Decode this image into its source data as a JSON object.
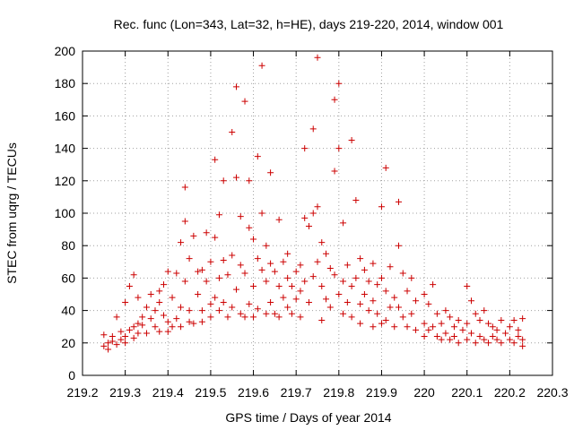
{
  "chart_data": {
    "type": "scatter",
    "title": "Rec. func (Lon=343, Lat=32, h=HE), days 219-220, 2014, window 001",
    "xlabel": "GPS time / Days of year 2014",
    "ylabel": "STEC from uqrg / TECUs",
    "xlim": [
      219.2,
      220.3
    ],
    "ylim": [
      0,
      200
    ],
    "x_ticks": [
      "219.2",
      "219.3",
      "219.4",
      "219.5",
      "219.6",
      "219.7",
      "219.8",
      "219.9",
      "220",
      "220.1",
      "220.2",
      "220.3"
    ],
    "y_ticks": [
      "0",
      "20",
      "40",
      "60",
      "80",
      "100",
      "120",
      "140",
      "160",
      "180",
      "200"
    ],
    "grid": true,
    "marker": "plus",
    "colors": {
      "points": "#cc0000",
      "grid": "#a0a0a0",
      "axis": "#000000"
    },
    "series": [
      {
        "points": [
          [
            219.25,
            25
          ],
          [
            219.25,
            18
          ],
          [
            219.26,
            20
          ],
          [
            219.26,
            16
          ],
          [
            219.27,
            24
          ],
          [
            219.27,
            21
          ],
          [
            219.28,
            19
          ],
          [
            219.28,
            36
          ],
          [
            219.29,
            27
          ],
          [
            219.29,
            22
          ],
          [
            219.3,
            45
          ],
          [
            219.3,
            24
          ],
          [
            219.3,
            20
          ],
          [
            219.31,
            55
          ],
          [
            219.31,
            28
          ],
          [
            219.32,
            30
          ],
          [
            219.32,
            23
          ],
          [
            219.32,
            62
          ],
          [
            219.33,
            48
          ],
          [
            219.33,
            32
          ],
          [
            219.33,
            26
          ],
          [
            219.34,
            36
          ],
          [
            219.34,
            31
          ],
          [
            219.35,
            42
          ],
          [
            219.35,
            26
          ],
          [
            219.36,
            35
          ],
          [
            219.36,
            50
          ],
          [
            219.37,
            40
          ],
          [
            219.37,
            30
          ],
          [
            219.38,
            52
          ],
          [
            219.38,
            27
          ],
          [
            219.38,
            45
          ],
          [
            219.39,
            56
          ],
          [
            219.39,
            37
          ],
          [
            219.4,
            33
          ],
          [
            219.4,
            64
          ],
          [
            219.4,
            27
          ],
          [
            219.41,
            48
          ],
          [
            219.41,
            30
          ],
          [
            219.42,
            63
          ],
          [
            219.42,
            35
          ],
          [
            219.43,
            82
          ],
          [
            219.43,
            42
          ],
          [
            219.43,
            30
          ],
          [
            219.44,
            116
          ],
          [
            219.44,
            95
          ],
          [
            219.44,
            58
          ],
          [
            219.45,
            72
          ],
          [
            219.45,
            40
          ],
          [
            219.45,
            33
          ],
          [
            219.46,
            86
          ],
          [
            219.46,
            32
          ],
          [
            219.47,
            64
          ],
          [
            219.47,
            50
          ],
          [
            219.48,
            65
          ],
          [
            219.48,
            40
          ],
          [
            219.48,
            33
          ],
          [
            219.49,
            88
          ],
          [
            219.49,
            58
          ],
          [
            219.5,
            70
          ],
          [
            219.5,
            44
          ],
          [
            219.5,
            36
          ],
          [
            219.51,
            133
          ],
          [
            219.51,
            85
          ],
          [
            219.51,
            48
          ],
          [
            219.52,
            99
          ],
          [
            219.52,
            60
          ],
          [
            219.52,
            40
          ],
          [
            219.53,
            120
          ],
          [
            219.53,
            71
          ],
          [
            219.53,
            45
          ],
          [
            219.54,
            62
          ],
          [
            219.54,
            36
          ],
          [
            219.55,
            150
          ],
          [
            219.55,
            74
          ],
          [
            219.55,
            42
          ],
          [
            219.56,
            178
          ],
          [
            219.56,
            122
          ],
          [
            219.56,
            53
          ],
          [
            219.57,
            98
          ],
          [
            219.57,
            68
          ],
          [
            219.57,
            38
          ],
          [
            219.58,
            169
          ],
          [
            219.58,
            63
          ],
          [
            219.58,
            36
          ],
          [
            219.59,
            120
          ],
          [
            219.59,
            91
          ],
          [
            219.59,
            44
          ],
          [
            219.6,
            84
          ],
          [
            219.6,
            55
          ],
          [
            219.6,
            36
          ],
          [
            219.61,
            135
          ],
          [
            219.61,
            72
          ],
          [
            219.61,
            41
          ],
          [
            219.62,
            191
          ],
          [
            219.62,
            100
          ],
          [
            219.62,
            65
          ],
          [
            219.63,
            80
          ],
          [
            219.63,
            58
          ],
          [
            219.63,
            38
          ],
          [
            219.64,
            125
          ],
          [
            219.64,
            69
          ],
          [
            219.64,
            45
          ],
          [
            219.65,
            64
          ],
          [
            219.65,
            38
          ],
          [
            219.66,
            96
          ],
          [
            219.66,
            55
          ],
          [
            219.66,
            36
          ],
          [
            219.67,
            70
          ],
          [
            219.67,
            48
          ],
          [
            219.68,
            75
          ],
          [
            219.68,
            60
          ],
          [
            219.68,
            42
          ],
          [
            219.69,
            55
          ],
          [
            219.69,
            38
          ],
          [
            219.7,
            64
          ],
          [
            219.7,
            47
          ],
          [
            219.71,
            68
          ],
          [
            219.71,
            52
          ],
          [
            219.71,
            36
          ],
          [
            219.72,
            140
          ],
          [
            219.72,
            97
          ],
          [
            219.72,
            58
          ],
          [
            219.73,
            92
          ],
          [
            219.73,
            45
          ],
          [
            219.74,
            152
          ],
          [
            219.74,
            100
          ],
          [
            219.74,
            61
          ],
          [
            219.75,
            196
          ],
          [
            219.75,
            104
          ],
          [
            219.75,
            70
          ],
          [
            219.76,
            82
          ],
          [
            219.76,
            55
          ],
          [
            219.76,
            34
          ],
          [
            219.77,
            75
          ],
          [
            219.77,
            47
          ],
          [
            219.78,
            66
          ],
          [
            219.78,
            42
          ],
          [
            219.79,
            126
          ],
          [
            219.79,
            170
          ],
          [
            219.79,
            62
          ],
          [
            219.8,
            180
          ],
          [
            219.8,
            140
          ],
          [
            219.8,
            50
          ],
          [
            219.81,
            94
          ],
          [
            219.81,
            58
          ],
          [
            219.81,
            38
          ],
          [
            219.82,
            68
          ],
          [
            219.82,
            45
          ],
          [
            219.83,
            145
          ],
          [
            219.83,
            55
          ],
          [
            219.83,
            36
          ],
          [
            219.84,
            108
          ],
          [
            219.84,
            60
          ],
          [
            219.85,
            72
          ],
          [
            219.85,
            44
          ],
          [
            219.85,
            32
          ],
          [
            219.86,
            65
          ],
          [
            219.86,
            50
          ],
          [
            219.87,
            58
          ],
          [
            219.87,
            40
          ],
          [
            219.88,
            69
          ],
          [
            219.88,
            46
          ],
          [
            219.88,
            30
          ],
          [
            219.89,
            56
          ],
          [
            219.89,
            38
          ],
          [
            219.9,
            104
          ],
          [
            219.9,
            60
          ],
          [
            219.9,
            32
          ],
          [
            219.91,
            128
          ],
          [
            219.91,
            52
          ],
          [
            219.91,
            34
          ],
          [
            219.92,
            67
          ],
          [
            219.92,
            42
          ],
          [
            219.93,
            48
          ],
          [
            219.93,
            30
          ],
          [
            219.94,
            107
          ],
          [
            219.94,
            80
          ],
          [
            219.94,
            42
          ],
          [
            219.95,
            63
          ],
          [
            219.95,
            36
          ],
          [
            219.96,
            52
          ],
          [
            219.96,
            30
          ],
          [
            219.97,
            60
          ],
          [
            219.97,
            38
          ],
          [
            219.98,
            46
          ],
          [
            219.98,
            28
          ],
          [
            220.0,
            50
          ],
          [
            220.0,
            32
          ],
          [
            220.0,
            24
          ],
          [
            220.01,
            44
          ],
          [
            220.01,
            28
          ],
          [
            220.02,
            56
          ],
          [
            220.02,
            30
          ],
          [
            220.03,
            38
          ],
          [
            220.03,
            24
          ],
          [
            220.04,
            32
          ],
          [
            220.04,
            22
          ],
          [
            220.05,
            40
          ],
          [
            220.05,
            26
          ],
          [
            220.06,
            36
          ],
          [
            220.06,
            22
          ],
          [
            220.07,
            30
          ],
          [
            220.07,
            24
          ],
          [
            220.08,
            34
          ],
          [
            220.08,
            20
          ],
          [
            220.09,
            28
          ],
          [
            220.1,
            55
          ],
          [
            220.1,
            32
          ],
          [
            220.1,
            22
          ],
          [
            220.11,
            46
          ],
          [
            220.11,
            26
          ],
          [
            220.12,
            38
          ],
          [
            220.12,
            20
          ],
          [
            220.13,
            34
          ],
          [
            220.13,
            24
          ],
          [
            220.14,
            40
          ],
          [
            220.14,
            22
          ],
          [
            220.15,
            32
          ],
          [
            220.15,
            20
          ],
          [
            220.16,
            30
          ],
          [
            220.16,
            24
          ],
          [
            220.17,
            28
          ],
          [
            220.17,
            22
          ],
          [
            220.18,
            34
          ],
          [
            220.18,
            20
          ],
          [
            220.19,
            26
          ],
          [
            220.2,
            30
          ],
          [
            220.2,
            22
          ],
          [
            220.21,
            34
          ],
          [
            220.21,
            20
          ],
          [
            220.22,
            28
          ],
          [
            220.22,
            24
          ],
          [
            220.23,
            35
          ],
          [
            220.23,
            22
          ],
          [
            220.23,
            18
          ]
        ]
      }
    ]
  }
}
